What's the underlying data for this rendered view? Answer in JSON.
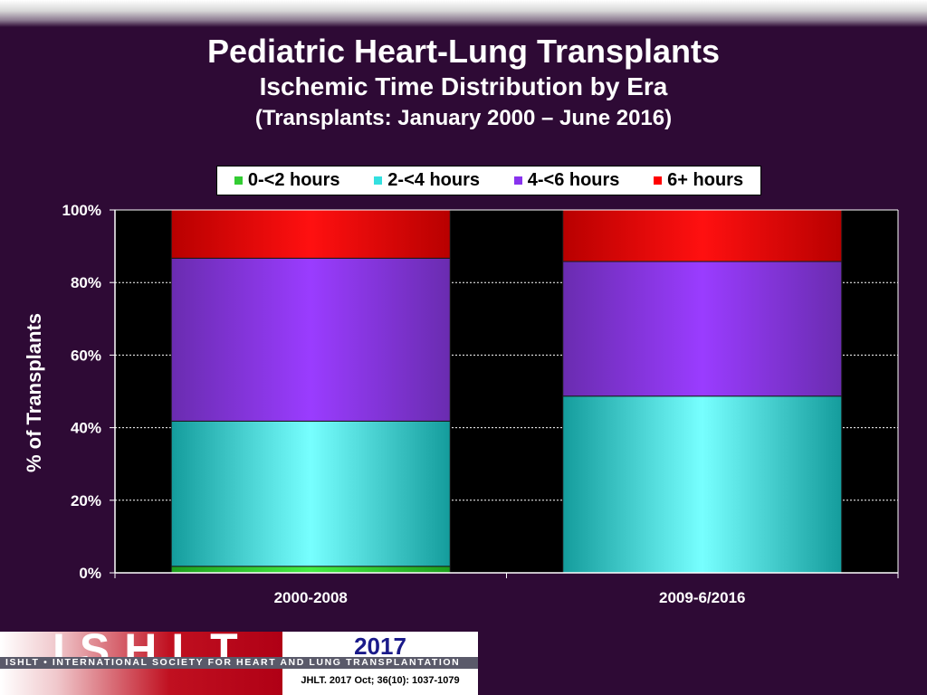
{
  "header": {
    "title": "Pediatric Heart-Lung Transplants",
    "subtitle": "Ischemic Time Distribution by Era",
    "subtitle2": "(Transplants: January 2000 – June 2016)"
  },
  "chart_data": {
    "type": "bar",
    "stacked": true,
    "normalized_percent": true,
    "categories": [
      "2000-2008",
      "2009-6/2016"
    ],
    "series": [
      {
        "name": "0-<2 hours",
        "color": "#33cc33",
        "values": [
          1.8,
          0
        ]
      },
      {
        "name": "2-<4 hours",
        "color": "#33e0e0",
        "values": [
          40,
          48.7
        ]
      },
      {
        "name": "4-<6 hours",
        "color": "#8833ee",
        "values": [
          44.9,
          37.1
        ]
      },
      {
        "name": "6+ hours",
        "color": "#ff0000",
        "values": [
          13.3,
          14.2
        ]
      }
    ],
    "ylabel": "% of Transplants",
    "ylim": [
      0,
      100
    ],
    "yticks": [
      "0%",
      "20%",
      "40%",
      "60%",
      "80%",
      "100%"
    ],
    "grid": true,
    "legend_position": "top"
  },
  "footer": {
    "logo": "ISHLT",
    "year": "2017",
    "org": "ISHLT • INTERNATIONAL SOCIETY FOR HEART AND LUNG TRANSPLANTATION",
    "citation": "JHLT. 2017 Oct; 36(10): 1037-1079"
  }
}
